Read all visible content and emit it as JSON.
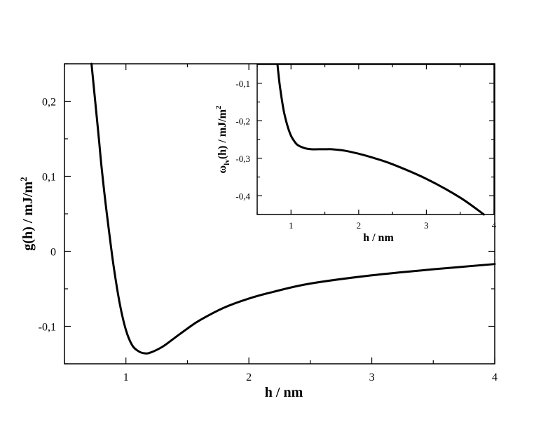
{
  "chart_data": [
    {
      "type": "line",
      "title": "",
      "xlabel": "h / nm",
      "ylabel": "g(h) / mJ/m",
      "ylabel_sup": "2",
      "xlim": [
        0.5,
        4
      ],
      "ylim": [
        -0.15,
        0.25
      ],
      "x_ticks": [
        1,
        2,
        3,
        4
      ],
      "x_tick_labels": [
        "1",
        "2",
        "3",
        "4"
      ],
      "y_ticks": [
        -0.1,
        0,
        0.1,
        0.2
      ],
      "y_tick_labels": [
        "-0,1",
        "0",
        "0,1",
        "0,2"
      ],
      "grid": false,
      "series": [
        {
          "color": "#000000",
          "x": [
            0.72,
            0.75,
            0.78,
            0.8,
            0.83,
            0.86,
            0.9,
            0.95,
            1.0,
            1.05,
            1.1,
            1.15,
            1.2,
            1.3,
            1.4,
            1.5,
            1.6,
            1.8,
            2.0,
            2.2,
            2.5,
            3.0,
            3.5,
            4.0
          ],
          "y": [
            0.25,
            0.2,
            0.15,
            0.115,
            0.07,
            0.03,
            -0.02,
            -0.07,
            -0.105,
            -0.125,
            -0.133,
            -0.136,
            -0.135,
            -0.127,
            -0.115,
            -0.103,
            -0.092,
            -0.075,
            -0.063,
            -0.054,
            -0.043,
            -0.032,
            -0.024,
            -0.017
          ]
        }
      ]
    },
    {
      "type": "line",
      "title": "",
      "xlabel": "h / nm",
      "ylabel_main": "ω",
      "ylabel_sub": "lv",
      "ylabel_rest": "(h) / mJ/m",
      "ylabel_sup": "2",
      "xlim": [
        0.5,
        4
      ],
      "ylim": [
        -0.45,
        -0.05
      ],
      "x_ticks": [
        1,
        2,
        3,
        4
      ],
      "x_tick_labels": [
        "1",
        "2",
        "3",
        "4"
      ],
      "y_ticks": [
        -0.4,
        -0.3,
        -0.2,
        -0.1
      ],
      "y_tick_labels": [
        "-0,4",
        "-0,3",
        "-0,2",
        "-0,1"
      ],
      "grid": false,
      "series": [
        {
          "color": "#000000",
          "x": [
            0.8,
            0.83,
            0.87,
            0.9,
            0.95,
            1.0,
            1.05,
            1.1,
            1.2,
            1.3,
            1.4,
            1.5,
            1.6,
            1.8,
            2.0,
            2.2,
            2.5,
            3.0,
            3.5,
            3.85
          ],
          "y": [
            -0.05,
            -0.1,
            -0.15,
            -0.18,
            -0.215,
            -0.24,
            -0.255,
            -0.265,
            -0.273,
            -0.276,
            -0.276,
            -0.276,
            -0.276,
            -0.28,
            -0.288,
            -0.298,
            -0.316,
            -0.355,
            -0.405,
            -0.45
          ]
        }
      ]
    }
  ]
}
